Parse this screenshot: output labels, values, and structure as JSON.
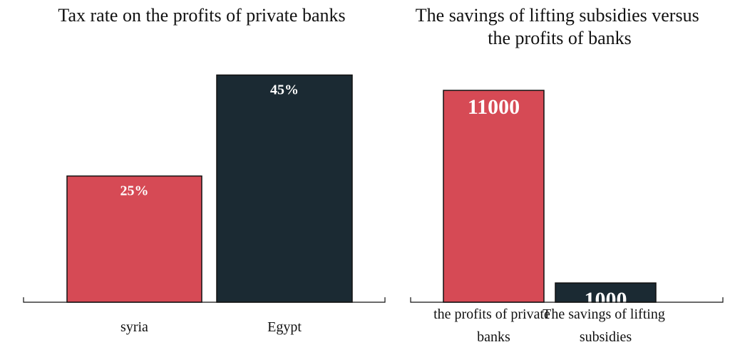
{
  "chart_data": [
    {
      "type": "bar",
      "title": "Tax rate on the profits of private banks",
      "categories": [
        "syria",
        "Egypt"
      ],
      "values": [
        25,
        45
      ],
      "value_labels": [
        "25%",
        "45%"
      ],
      "colors": [
        "#d64a55",
        "#1b2a33"
      ],
      "ylim": [
        0,
        50
      ]
    },
    {
      "type": "bar",
      "title": "The savings of lifting subsidies versus the profits of banks",
      "categories": [
        "the profits of private banks",
        "The savings of lifting subsidies"
      ],
      "values": [
        11000,
        1000
      ],
      "colors": [
        "#d64a55",
        "#1b2a33"
      ],
      "ylim": [
        0,
        12000
      ]
    }
  ]
}
